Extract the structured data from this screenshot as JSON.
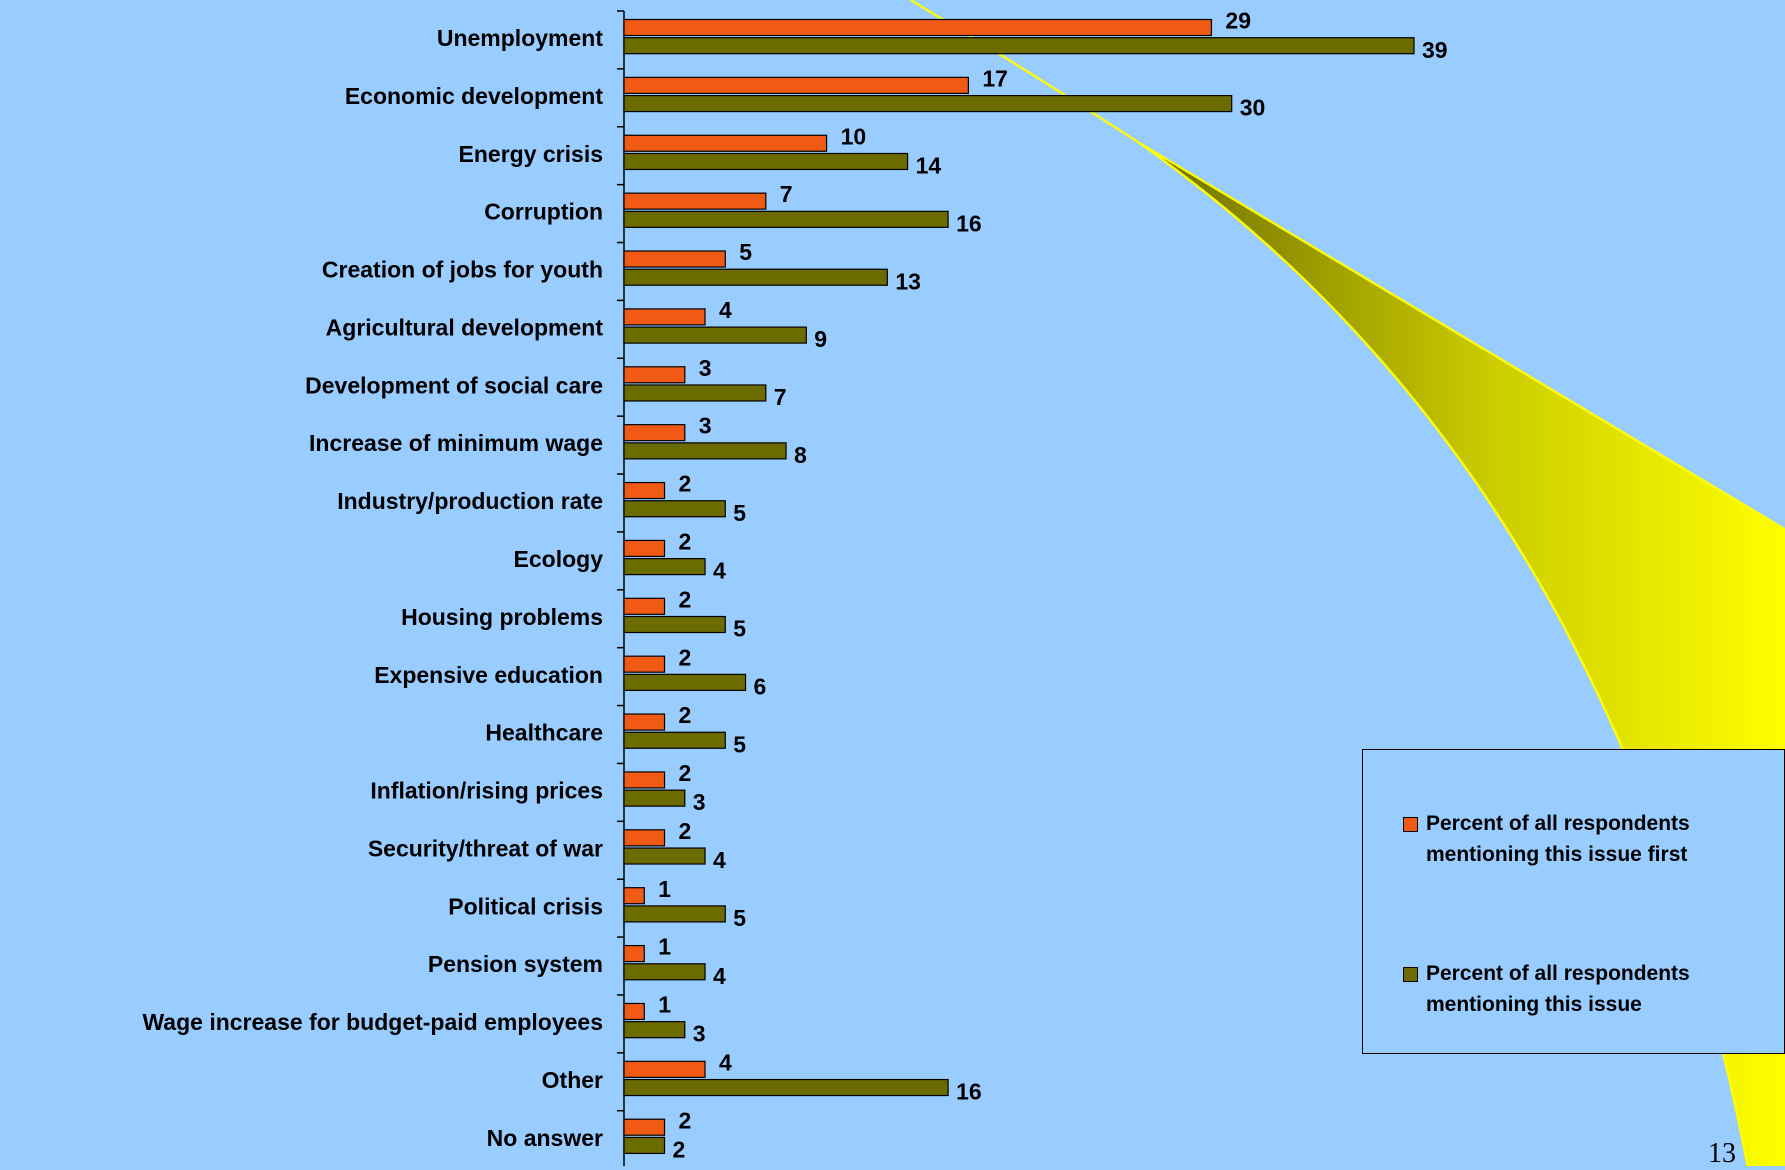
{
  "chart_data": {
    "type": "bar",
    "orientation": "horizontal",
    "categories": [
      "Unemployment",
      "Economic development",
      "Energy crisis",
      "Corruption",
      "Creation of jobs for youth",
      "Agricultural development",
      "Development of social care",
      "Increase of minimum wage",
      "Industry/production rate",
      "Ecology",
      "Housing problems",
      "Expensive education",
      "Healthcare",
      "Inflation/rising prices",
      "Security/threat of war",
      "Political crisis",
      "Pension system",
      "Wage increase for budget-paid employees",
      "Other",
      "No answer"
    ],
    "series": [
      {
        "name": "Percent of all respondents mentioning this issue first",
        "color": "#f05a14",
        "values": [
          29,
          17,
          10,
          7,
          5,
          4,
          3,
          3,
          2,
          2,
          2,
          2,
          2,
          2,
          2,
          1,
          1,
          1,
          4,
          2
        ]
      },
      {
        "name": "Percent of all respondents mentioning this issue",
        "color": "#6b6b00",
        "values": [
          39,
          30,
          14,
          16,
          13,
          9,
          7,
          8,
          5,
          4,
          5,
          6,
          5,
          3,
          4,
          5,
          4,
          3,
          16,
          2
        ]
      }
    ],
    "legend": "right",
    "page_number": "13"
  }
}
